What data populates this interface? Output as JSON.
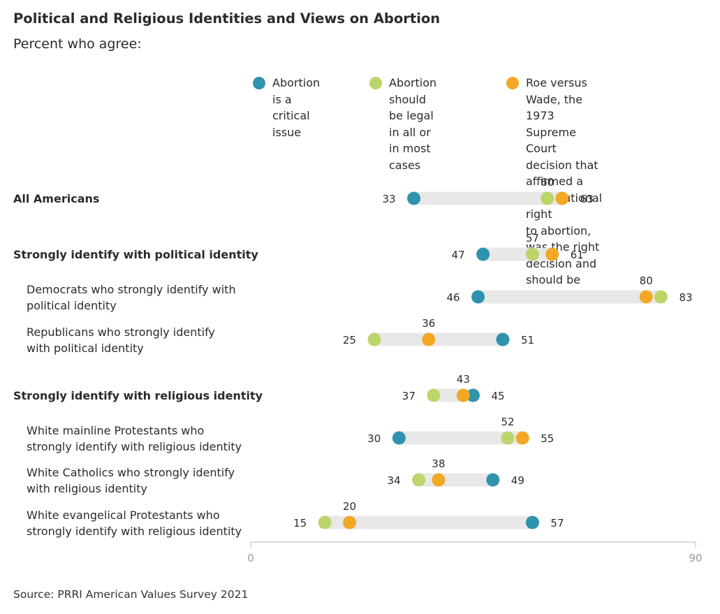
{
  "title": "Political and Religious Identities and Views on Abortion",
  "subtitle": "Percent who agree:",
  "source": "Source: PRRI American Values Survey 2021",
  "colors": {
    "critical": "#2f93ad",
    "legal": "#bcd56a",
    "roe": "#f3a825",
    "range_bar": "#e8e8e8",
    "axis": "#cfcfcf"
  },
  "legend": [
    {
      "key": "critical",
      "label": "Abortion is a\ncritical issue"
    },
    {
      "key": "legal",
      "label": "Abortion should\nbe legal in all or\nin most cases"
    },
    {
      "key": "roe",
      "label": "Roe versus Wade, the 1973\nSupreme Court decision that\naffirmed a constitutional right\nto abortion, was the right\ndecision and should be upheld"
    }
  ],
  "chart_data": {
    "type": "dot-range",
    "xlim": [
      0,
      90
    ],
    "x_ticks": [
      "0",
      "90"
    ],
    "series": [
      {
        "key": "critical",
        "name": "Abortion is a critical issue"
      },
      {
        "key": "legal",
        "name": "Abortion should be legal in all or in most cases"
      },
      {
        "key": "roe",
        "name": "Roe versus Wade, the 1973 Supreme Court decision that affirmed a constitutional right to abortion, was the right decision and should be upheld"
      }
    ],
    "rows": [
      {
        "label": "All Americans",
        "bold": true,
        "critical": 33,
        "legal": 60,
        "roe": 63
      },
      {
        "label": "Strongly identify with political identity",
        "bold": true,
        "critical": 47,
        "legal": 57,
        "roe": 61
      },
      {
        "label": "Democrats who strongly identify with\npolitical identity",
        "bold": false,
        "critical": 46,
        "legal": 83,
        "roe": 80
      },
      {
        "label": "Republicans who strongly identify\nwith political identity",
        "bold": false,
        "critical": 51,
        "legal": 25,
        "roe": 36
      },
      {
        "label": "Strongly identify with religious identity",
        "bold": true,
        "critical": 45,
        "legal": 37,
        "roe": 43
      },
      {
        "label": "White mainline Protestants who\nstrongly identify with religious identity",
        "bold": false,
        "critical": 30,
        "legal": 52,
        "roe": 55
      },
      {
        "label": "White Catholics who strongly identify\nwith religious identity",
        "bold": false,
        "critical": 49,
        "legal": 34,
        "roe": 38
      },
      {
        "label": "White evangelical Protestants who\nstrongly identify with religious identity",
        "bold": false,
        "critical": 57,
        "legal": 15,
        "roe": 20
      }
    ]
  }
}
